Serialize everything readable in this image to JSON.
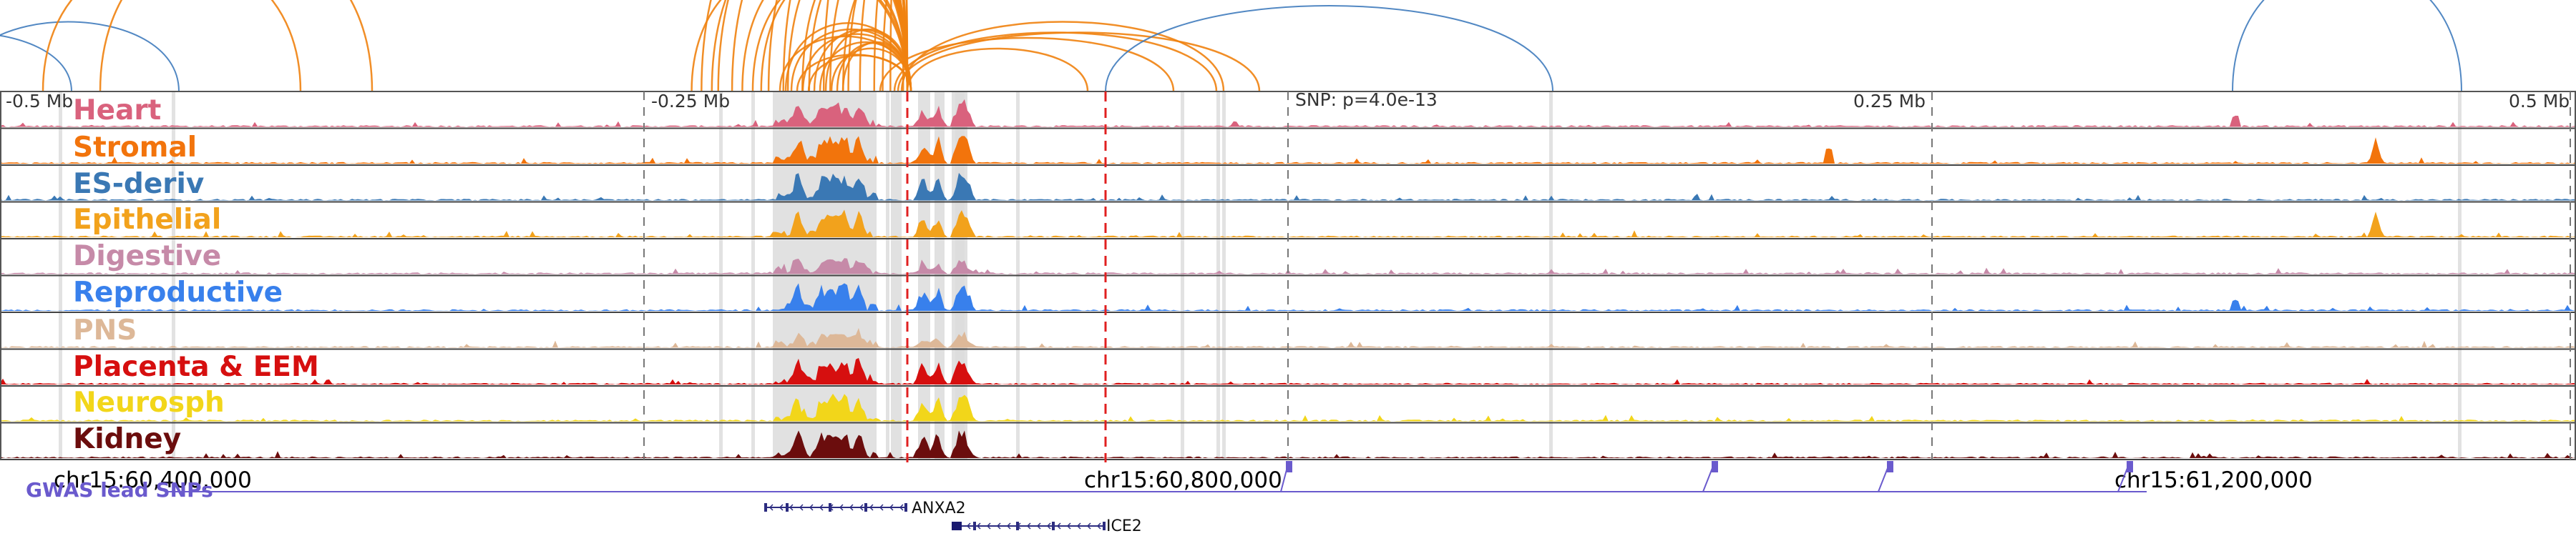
{
  "ruler": {
    "labels": [
      "-0.5 Mb",
      "-0.25 Mb",
      "SNP: p=4.0e-13",
      "0.25 Mb",
      "0.5 Mb"
    ]
  },
  "tracks": [
    {
      "name": "Heart",
      "color": "#d9627d"
    },
    {
      "name": "Stromal",
      "color": "#f2740c"
    },
    {
      "name": "ES-deriv",
      "color": "#3a78b4"
    },
    {
      "name": "Epithelial",
      "color": "#f2a21c"
    },
    {
      "name": "Digestive",
      "color": "#c68aa8"
    },
    {
      "name": "Reproductive",
      "color": "#3880ec"
    },
    {
      "name": "PNS",
      "color": "#ddb898"
    },
    {
      "name": "Placenta & EEM",
      "color": "#d60f0f"
    },
    {
      "name": "Neurosph",
      "color": "#f2d61a"
    },
    {
      "name": "Kidney",
      "color": "#6b0d0d"
    }
  ],
  "coordinates": [
    "chr15:60,400,000",
    "chr15:60,800,000",
    "chr15:61,200,000"
  ],
  "gwas_label": "GWAS lead SNPs",
  "genes": [
    "ANXA2",
    "ICE2"
  ],
  "colors": {
    "arc_orange": "#f0820f",
    "arc_blue": "#3f7bbd",
    "snp_line": "#e02020",
    "gwas": "#6a5acd"
  },
  "chart_data": {
    "type": "area",
    "tracks": [
      "Heart",
      "Stromal",
      "ES-deriv",
      "Epithelial",
      "Digestive",
      "Reproductive",
      "PNS",
      "Placenta & EEM",
      "Neurosph",
      "Kidney"
    ],
    "x_axis_ticks": [
      "-0.5 Mb",
      "-0.25 Mb",
      "0.25 Mb",
      "0.5 Mb"
    ],
    "lead_snp": "SNP: p=4.0e-13",
    "genomic_ticks": [
      "chr15:60,400,000",
      "chr15:60,800,000",
      "chr15:61,200,000"
    ],
    "genes": [
      "ANXA2",
      "ICE2"
    ],
    "gwas_track": "GWAS lead SNPs"
  }
}
